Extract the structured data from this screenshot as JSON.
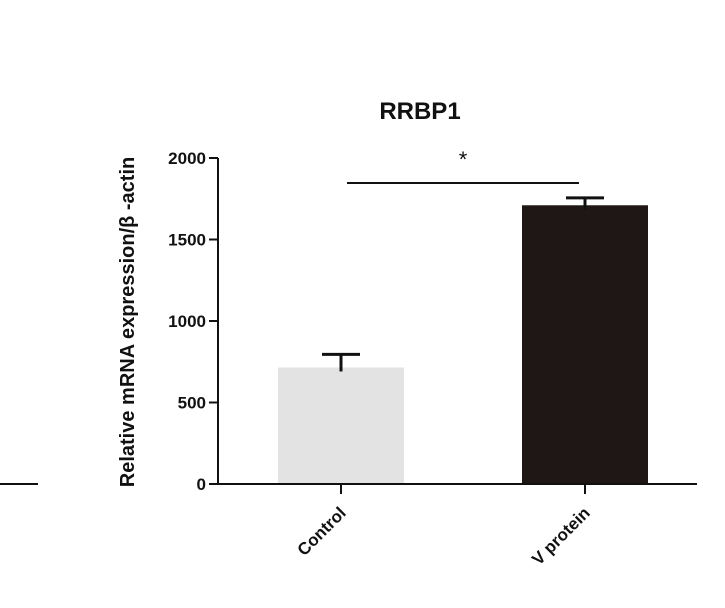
{
  "chart_data": {
    "type": "bar",
    "title": "RRBP1",
    "ylabel": "Relative mRNA expression/β -actin",
    "xlabel": "",
    "categories": [
      "Control",
      "V protein"
    ],
    "values": [
      715,
      1710
    ],
    "errors": [
      80,
      45
    ],
    "ylim": [
      0,
      2000
    ],
    "yticks": [
      0,
      500,
      1000,
      1500,
      2000
    ],
    "bar_colors": [
      "#e3e3e3",
      "#1e1716"
    ],
    "grid": false,
    "legend": "none",
    "significance": {
      "label": "*",
      "between": [
        0,
        1
      ]
    }
  },
  "colors": {
    "axis": "#111111",
    "background": "#ffffff"
  }
}
